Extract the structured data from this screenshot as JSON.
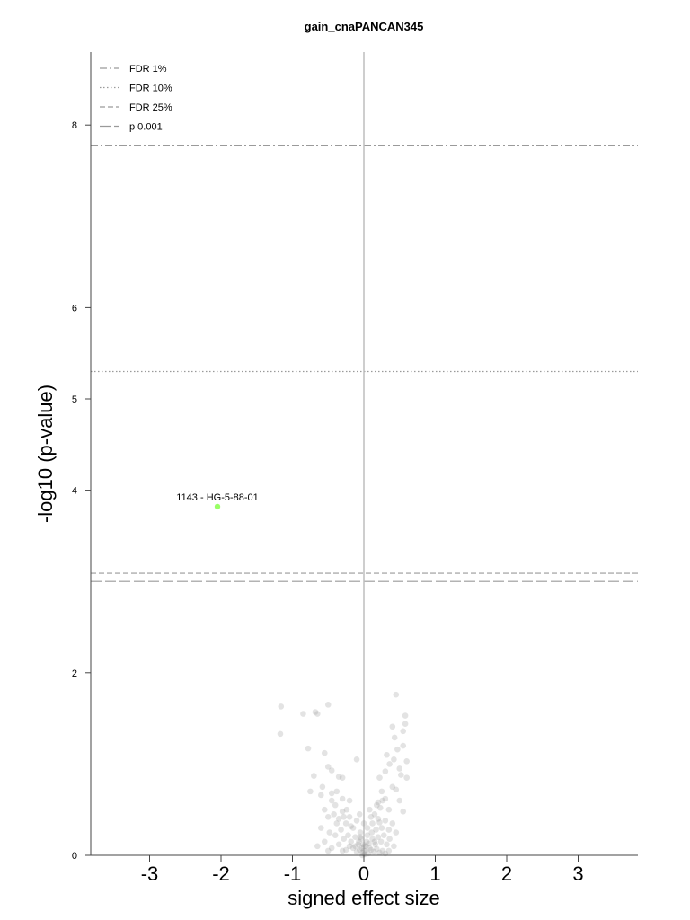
{
  "chart_data": {
    "type": "scatter",
    "title": "gain_cnaPANCAN345",
    "xlabel": "signed effect size",
    "ylabel": "-log10 (p-value)",
    "xlim": [
      -3.8,
      3.8
    ],
    "ylim": [
      0,
      8.9
    ],
    "x_ticks": [
      "-3",
      "-2",
      "-1",
      "0",
      "1",
      "2",
      "3"
    ],
    "y_ticks": [
      "0",
      "2",
      "4",
      "5",
      "6",
      "8"
    ],
    "legend_position": "top-left",
    "thresholds": [
      {
        "name": "FDR 1%",
        "y": 7.78,
        "style": "dashdot"
      },
      {
        "name": "FDR 10%",
        "y": 5.3,
        "style": "dotted"
      },
      {
        "name": "FDR 25%",
        "y": 3.09,
        "style": "dashed-short"
      },
      {
        "name": "p 0.001",
        "y": 3.0,
        "style": "dashed-long"
      }
    ],
    "highlight": {
      "label": "1143 - HG-5-88-01",
      "x": -2.05,
      "y": 3.82,
      "color": "#99ff66"
    },
    "points_color": "#999999",
    "points": [
      [
        -1.16,
        1.63
      ],
      [
        -1.17,
        1.33
      ],
      [
        -0.85,
        1.55
      ],
      [
        -0.68,
        1.57
      ],
      [
        -0.65,
        1.55
      ],
      [
        -0.5,
        1.65
      ],
      [
        0.45,
        1.76
      ],
      [
        0.58,
        1.53
      ],
      [
        0.58,
        1.44
      ],
      [
        0.4,
        1.41
      ],
      [
        0.43,
        1.29
      ],
      [
        0.55,
        1.36
      ],
      [
        0.47,
        1.16
      ],
      [
        0.55,
        1.2
      ],
      [
        0.6,
        1.03
      ],
      [
        -0.78,
        1.17
      ],
      [
        -0.55,
        1.12
      ],
      [
        -0.5,
        0.97
      ],
      [
        -0.45,
        0.93
      ],
      [
        -0.35,
        0.86
      ],
      [
        -0.3,
        0.85
      ],
      [
        -0.7,
        0.87
      ],
      [
        -0.1,
        1.05
      ],
      [
        0.32,
        1.1
      ],
      [
        0.36,
        1.0
      ],
      [
        0.42,
        1.05
      ],
      [
        0.5,
        0.95
      ],
      [
        0.52,
        0.88
      ],
      [
        0.3,
        0.92
      ],
      [
        0.22,
        0.85
      ],
      [
        -0.75,
        0.7
      ],
      [
        -0.6,
        0.66
      ],
      [
        -0.58,
        0.75
      ],
      [
        -0.45,
        0.68
      ],
      [
        -0.38,
        0.7
      ],
      [
        -0.3,
        0.62
      ],
      [
        -0.4,
        0.55
      ],
      [
        -0.2,
        0.6
      ],
      [
        0.25,
        0.7
      ],
      [
        0.2,
        0.58
      ],
      [
        0.18,
        0.55
      ],
      [
        0.3,
        0.62
      ],
      [
        0.35,
        0.5
      ],
      [
        0.4,
        0.75
      ],
      [
        0.45,
        0.72
      ],
      [
        0.5,
        0.6
      ],
      [
        0.55,
        0.48
      ],
      [
        0.6,
        0.85
      ],
      [
        -0.55,
        0.5
      ],
      [
        -0.5,
        0.42
      ],
      [
        -0.42,
        0.45
      ],
      [
        -0.35,
        0.4
      ],
      [
        -0.3,
        0.48
      ],
      [
        -0.25,
        0.35
      ],
      [
        -0.2,
        0.42
      ],
      [
        -0.15,
        0.3
      ],
      [
        -0.1,
        0.38
      ],
      [
        -0.05,
        0.25
      ],
      [
        0.05,
        0.3
      ],
      [
        0.1,
        0.42
      ],
      [
        0.12,
        0.35
      ],
      [
        0.15,
        0.45
      ],
      [
        0.2,
        0.4
      ],
      [
        0.25,
        0.3
      ],
      [
        0.3,
        0.38
      ],
      [
        0.35,
        0.28
      ],
      [
        0.4,
        0.35
      ],
      [
        0.45,
        0.25
      ],
      [
        -0.6,
        0.3
      ],
      [
        -0.48,
        0.25
      ],
      [
        -0.4,
        0.22
      ],
      [
        -0.32,
        0.28
      ],
      [
        -0.28,
        0.18
      ],
      [
        -0.22,
        0.22
      ],
      [
        -0.18,
        0.15
      ],
      [
        -0.12,
        0.2
      ],
      [
        -0.08,
        0.12
      ],
      [
        -0.04,
        0.18
      ],
      [
        0.0,
        0.1
      ],
      [
        0.04,
        0.15
      ],
      [
        0.08,
        0.08
      ],
      [
        0.12,
        0.18
      ],
      [
        0.16,
        0.12
      ],
      [
        0.2,
        0.2
      ],
      [
        0.24,
        0.15
      ],
      [
        0.28,
        0.22
      ],
      [
        0.32,
        0.12
      ],
      [
        0.36,
        0.18
      ],
      [
        0.42,
        0.1
      ],
      [
        -0.65,
        0.1
      ],
      [
        -0.55,
        0.15
      ],
      [
        -0.45,
        0.08
      ],
      [
        -0.35,
        0.12
      ],
      [
        -0.25,
        0.06
      ],
      [
        -0.15,
        0.08
      ],
      [
        -0.1,
        0.04
      ],
      [
        -0.06,
        0.06
      ],
      [
        -0.02,
        0.03
      ],
      [
        0.02,
        0.05
      ],
      [
        0.06,
        0.02
      ],
      [
        0.1,
        0.06
      ],
      [
        0.14,
        0.04
      ],
      [
        0.18,
        0.07
      ],
      [
        0.22,
        0.03
      ],
      [
        0.26,
        0.05
      ],
      [
        0.3,
        0.02
      ],
      [
        -0.03,
        0.08
      ],
      [
        0.0,
        0.05
      ],
      [
        -0.01,
        0.12
      ],
      [
        0.03,
        0.1
      ],
      [
        -0.07,
        0.15
      ],
      [
        0.07,
        0.13
      ],
      [
        -0.05,
        0.2
      ],
      [
        0.05,
        0.22
      ],
      [
        -0.12,
        0.1
      ],
      [
        0.11,
        0.25
      ],
      [
        -0.18,
        0.32
      ],
      [
        0.17,
        0.28
      ],
      [
        -0.24,
        0.5
      ],
      [
        0.23,
        0.52
      ],
      [
        -0.45,
        0.6
      ],
      [
        0.26,
        0.6
      ],
      [
        -0.02,
        0.0
      ],
      [
        0.01,
        0.01
      ],
      [
        -0.3,
        0.05
      ],
      [
        0.35,
        0.05
      ],
      [
        -0.5,
        0.05
      ],
      [
        -0.2,
        0.1
      ],
      [
        0.15,
        0.15
      ],
      [
        -0.38,
        0.35
      ],
      [
        0.22,
        0.36
      ],
      [
        0.0,
        0.35
      ],
      [
        -0.06,
        0.45
      ],
      [
        0.08,
        0.5
      ],
      [
        -0.28,
        0.42
      ]
    ]
  }
}
